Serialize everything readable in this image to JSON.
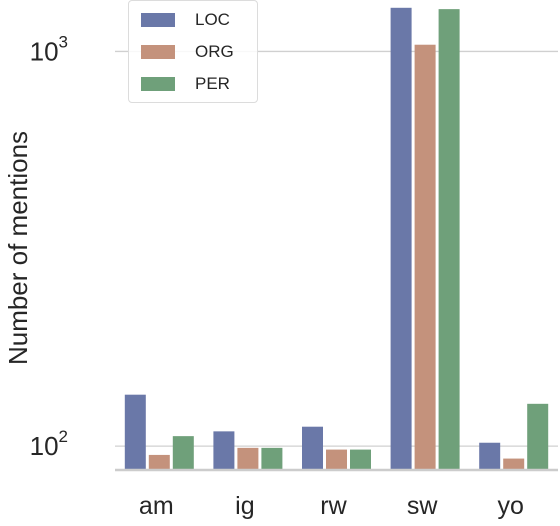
{
  "chart_data": {
    "type": "bar",
    "title": "",
    "xlabel": "",
    "ylabel": "Number of mentions",
    "yscale": "log",
    "ylim": [
      87,
      1350
    ],
    "yticks": [
      {
        "value": 100,
        "base": "10",
        "exp": "2"
      },
      {
        "value": 1000,
        "base": "10",
        "exp": "3"
      }
    ],
    "grid": "y-major",
    "legend_position": "top-left",
    "categories": [
      "am",
      "ig",
      "rw",
      "sw",
      "yo"
    ],
    "series": [
      {
        "name": "LOC",
        "color": "#6a78a8",
        "values": [
          135,
          109,
          112,
          1290,
          102
        ]
      },
      {
        "name": "ORG",
        "color": "#c4927c",
        "values": [
          95,
          99,
          98,
          1040,
          93
        ]
      },
      {
        "name": "PER",
        "color": "#6fa07a",
        "values": [
          106,
          99,
          98,
          1280,
          128
        ]
      }
    ]
  }
}
